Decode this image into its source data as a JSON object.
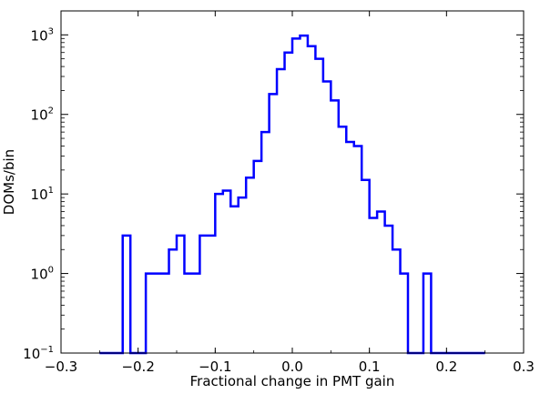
{
  "chart_data": {
    "type": "histogram",
    "xlabel": "Fractional change in PMT gain",
    "ylabel": "DOMs/bin",
    "xlim": [
      -0.3,
      0.3
    ],
    "ylim": [
      0.1,
      2000
    ],
    "yscale": "log",
    "grid": false,
    "line_color": "#0000ff",
    "x_ticks": [
      {
        "value": -0.3,
        "label": "−0.3"
      },
      {
        "value": -0.2,
        "label": "−0.2"
      },
      {
        "value": -0.1,
        "label": "−0.1"
      },
      {
        "value": 0.0,
        "label": "0.0"
      },
      {
        "value": 0.1,
        "label": "0.1"
      },
      {
        "value": 0.2,
        "label": "0.2"
      },
      {
        "value": 0.3,
        "label": "0.3"
      }
    ],
    "y_ticks": [
      {
        "value": 0.1,
        "base": "10",
        "exp": "−1"
      },
      {
        "value": 1,
        "base": "10",
        "exp": "0"
      },
      {
        "value": 10,
        "base": "10",
        "exp": "1"
      },
      {
        "value": 100,
        "base": "10",
        "exp": "2"
      },
      {
        "value": 1000,
        "base": "10",
        "exp": "3"
      }
    ],
    "bin_edges": [
      -0.25,
      -0.24,
      -0.23,
      -0.22,
      -0.21,
      -0.2,
      -0.19,
      -0.18,
      -0.17,
      -0.16,
      -0.15,
      -0.14,
      -0.13,
      -0.12,
      -0.11,
      -0.1,
      -0.09,
      -0.08,
      -0.07,
      -0.06,
      -0.05,
      -0.04,
      -0.03,
      -0.02,
      -0.01,
      0.0,
      0.01,
      0.02,
      0.03,
      0.04,
      0.05,
      0.06,
      0.07,
      0.08,
      0.09,
      0.1,
      0.11,
      0.12,
      0.13,
      0.14,
      0.15,
      0.16,
      0.17,
      0.18,
      0.19,
      0.2,
      0.21,
      0.22,
      0.23,
      0.24,
      0.25
    ],
    "counts": [
      0,
      0,
      0,
      3,
      0,
      0,
      1,
      1,
      1,
      2,
      3,
      1,
      1,
      3,
      3,
      10,
      11,
      7,
      9,
      16,
      26,
      60,
      180,
      370,
      600,
      900,
      980,
      720,
      500,
      260,
      150,
      70,
      45,
      40,
      15,
      5,
      6,
      4,
      2,
      1,
      0,
      0,
      1,
      0,
      0,
      0,
      0,
      0,
      0,
      0
    ]
  }
}
